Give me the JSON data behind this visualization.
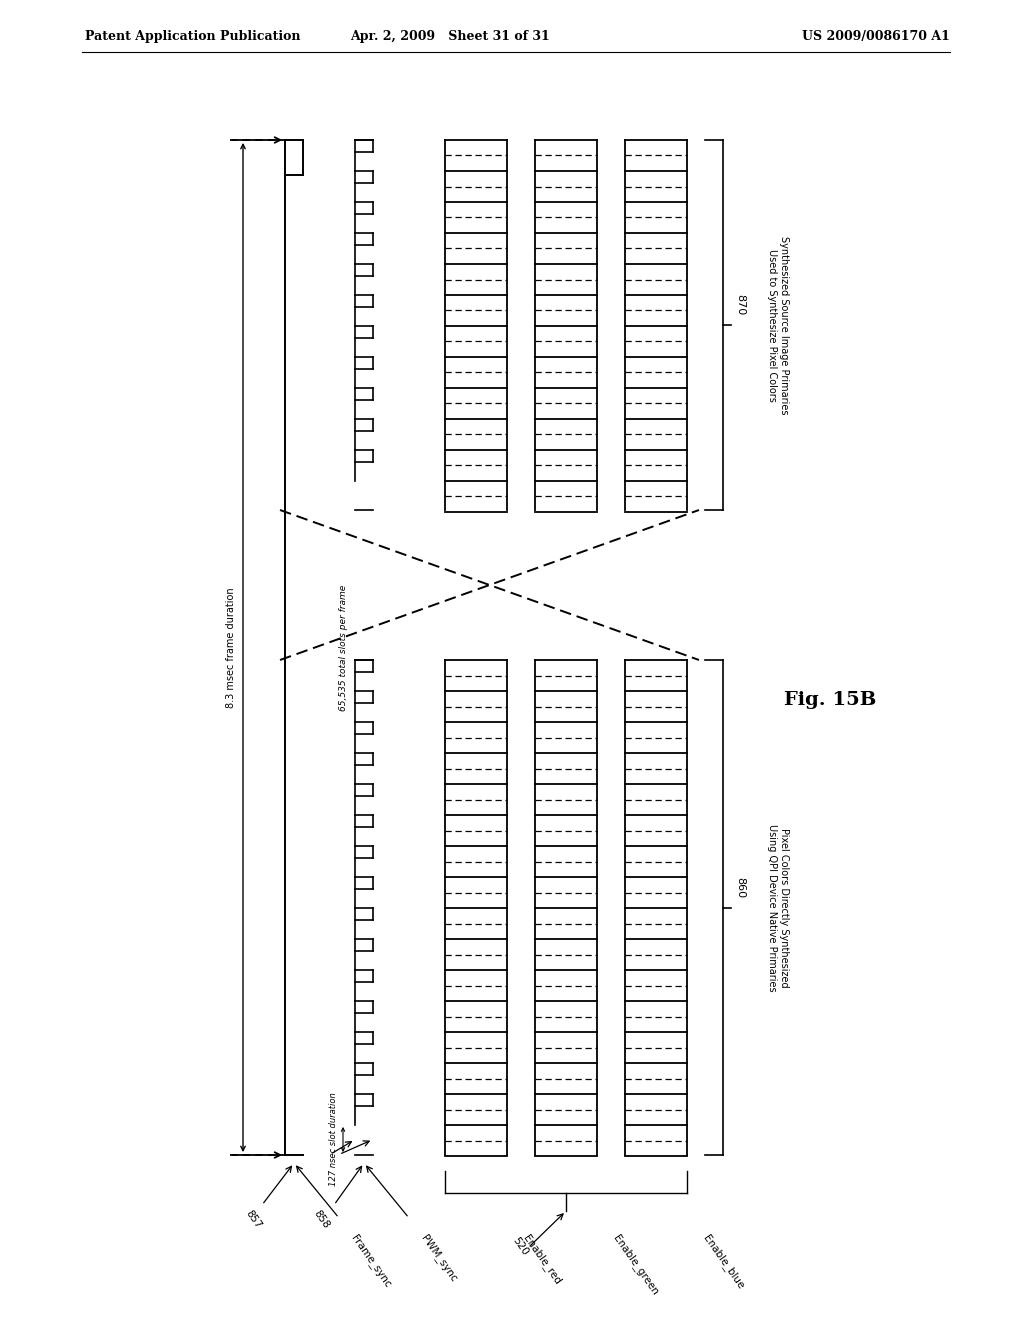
{
  "header_left": "Patent Application Publication",
  "header_mid": "Apr. 2, 2009   Sheet 31 of 31",
  "header_right": "US 2009/0086170 A1",
  "fig_label": "Fig. 15B",
  "label_870": "870",
  "label_860": "860",
  "text_870": "Synthesized Source Image Primaries\nUsed to Synthesize Pixel Colors",
  "text_860": "Pixel Colors Directly Synthesized\nUsing QPI Device Native Primaries",
  "text_8_3": "8.3 msec frame duration",
  "text_65535": "65,535 total slots per frame",
  "text_127": "127 nsec slot duration",
  "bg_color": "#ffffff",
  "line_color": "#000000"
}
